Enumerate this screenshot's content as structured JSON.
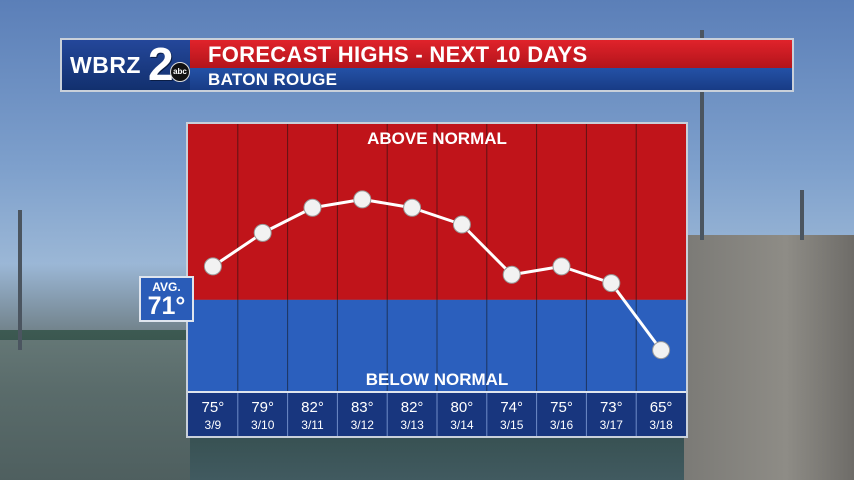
{
  "header": {
    "logo_text": "WBRZ",
    "logo_number": "2",
    "logo_network": "abc",
    "title": "FORECAST HIGHS - NEXT 10 DAYS",
    "subtitle": "BATON ROUGE"
  },
  "average": {
    "label": "AVG.",
    "value": "71°"
  },
  "chart_data": {
    "type": "line",
    "categories": [
      "3/9",
      "3/10",
      "3/11",
      "3/12",
      "3/13",
      "3/14",
      "3/15",
      "3/16",
      "3/17",
      "3/18"
    ],
    "values": [
      75,
      79,
      82,
      83,
      82,
      80,
      74,
      75,
      73,
      65
    ],
    "value_labels": [
      "75°",
      "79°",
      "82°",
      "83°",
      "82°",
      "80°",
      "74°",
      "75°",
      "73°",
      "65°"
    ],
    "average": 71,
    "ylim": [
      60,
      92
    ],
    "above_label": "ABOVE NORMAL",
    "below_label": "BELOW NORMAL",
    "colors": {
      "above": "#c0141a",
      "below": "#2b5fbd",
      "table": "#18367e",
      "line": "#ffffff",
      "marker": "#f2f2f2"
    }
  }
}
